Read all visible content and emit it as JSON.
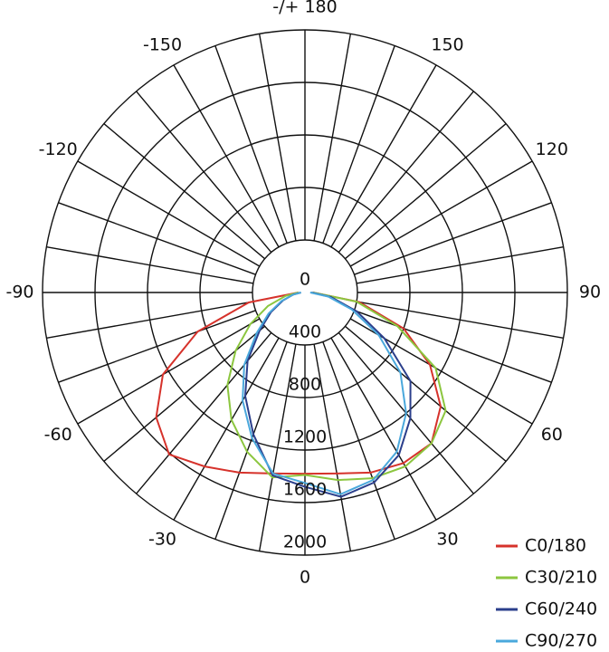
{
  "chart_data": {
    "type": "polar",
    "theta": [
      -90,
      -80,
      -70,
      -60,
      -50,
      -40,
      -30,
      -20,
      -10,
      0,
      10,
      20,
      30,
      40,
      50,
      60,
      70,
      80,
      90
    ],
    "rlim": [
      0,
      2000
    ],
    "rticks": [
      0,
      400,
      800,
      1200,
      1600,
      2000
    ],
    "thetaticks": [
      0,
      30,
      60,
      90,
      120,
      150,
      {
        "value": 180,
        "label": "-/+ 180"
      },
      -150,
      -120,
      -90,
      -60,
      -30
    ],
    "grid": true,
    "legend": "lower right",
    "series": [
      {
        "name": "C0/180",
        "color": "#d6322b",
        "values": [
          50,
          435,
          870,
          1250,
          1480,
          1610,
          1530,
          1460,
          1400,
          1380,
          1400,
          1460,
          1500,
          1500,
          1350,
          1100,
          800,
          420,
          60
        ]
      },
      {
        "name": "C30/210",
        "color": "#8cc63f",
        "values": [
          50,
          150,
          300,
          480,
          690,
          920,
          1120,
          1290,
          1430,
          1390,
          1450,
          1505,
          1530,
          1500,
          1400,
          1150,
          750,
          400,
          60
        ]
      },
      {
        "name": "C60/240",
        "color": "#2b3f8c",
        "values": [
          30,
          90,
          180,
          300,
          450,
          680,
          910,
          1150,
          1415,
          1480,
          1580,
          1540,
          1430,
          1250,
          1050,
          700,
          420,
          200,
          50
        ]
      },
      {
        "name": "C90/270",
        "color": "#4aa8dc",
        "values": [
          30,
          90,
          190,
          320,
          480,
          720,
          950,
          1180,
          1400,
          1450,
          1560,
          1520,
          1400,
          1200,
          950,
          650,
          380,
          180,
          40
        ]
      }
    ]
  }
}
